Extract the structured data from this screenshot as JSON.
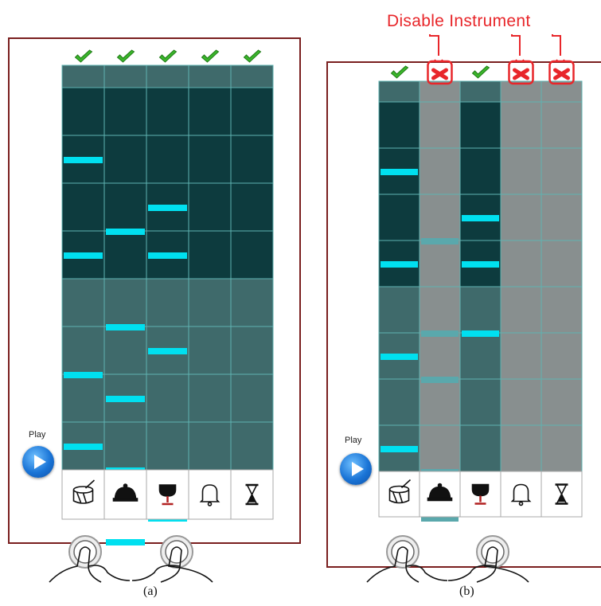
{
  "panels": [
    {
      "id": "a",
      "caption": "(a)",
      "play_label": "Play",
      "instruments": [
        {
          "icon": "drum-icon",
          "enabled": true
        },
        {
          "icon": "bell-dome-icon",
          "enabled": true
        },
        {
          "icon": "goblet-icon",
          "enabled": true
        },
        {
          "icon": "bell-icon",
          "enabled": true
        },
        {
          "icon": "hourglass-icon",
          "enabled": true
        }
      ],
      "active_rows": 8,
      "total_rows": 16,
      "notes": [
        [
          2,
          6,
          11,
          14
        ],
        [
          5,
          9,
          12,
          15,
          16,
          18
        ],
        [
          4,
          6,
          10,
          17
        ],
        [],
        []
      ]
    },
    {
      "id": "b",
      "caption": "(b)",
      "play_label": "Play",
      "instruments": [
        {
          "icon": "drum-icon",
          "enabled": true
        },
        {
          "icon": "bell-dome-icon",
          "enabled": false
        },
        {
          "icon": "goblet-icon",
          "enabled": true
        },
        {
          "icon": "bell-icon",
          "enabled": false
        },
        {
          "icon": "hourglass-icon",
          "enabled": false
        }
      ],
      "active_rows": 8,
      "total_rows": 16,
      "notes": [
        [
          2,
          6,
          10,
          14
        ],
        [
          5,
          9,
          11,
          15,
          17
        ],
        [
          4,
          6,
          9,
          16
        ],
        [],
        []
      ]
    }
  ],
  "annotation": {
    "label": "Disable Instrument"
  },
  "colors": {
    "active_cell": "#0d3b3e",
    "inactive_cell": "#3f6a6b",
    "header_cell": "#3f6a6b",
    "disabled_cell": "#888f8f",
    "grid_line": "#5fb3b1",
    "note": "#00e0f0",
    "check": "#3bb52b",
    "cross": "#e8262a",
    "annotation": "#e8262a"
  }
}
